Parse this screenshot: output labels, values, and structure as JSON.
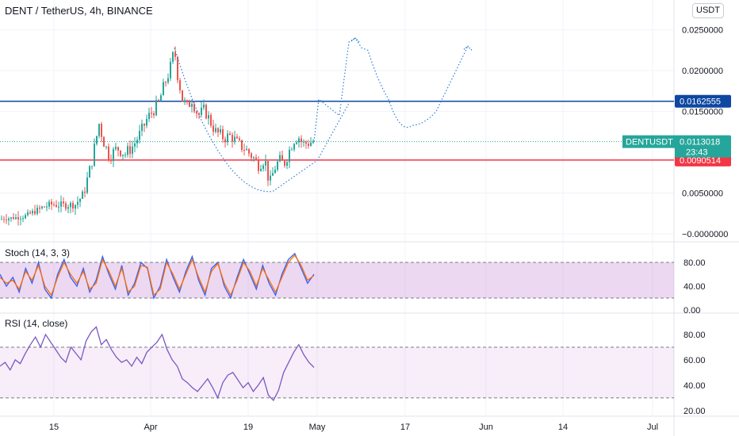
{
  "chart_data": [
    {
      "type": "candlestick",
      "title": "DENT / TetherUS, 4h, BINANCE",
      "currency": "USDT",
      "price_ticks": [
        "0.0250000",
        "0.0200000",
        "0.0150000",
        "0.0050000",
        "−0.0000000"
      ],
      "price_range": [
        -0.0002,
        0.0275
      ],
      "x_tick_labels": [
        "15",
        "Apr",
        "19",
        "May",
        "17",
        "Jun",
        "14",
        "Jul"
      ],
      "symbol_tag": {
        "label": "DENTUSDT",
        "value": "0.0113018",
        "countdown": "23:43",
        "color": "#26a69a"
      },
      "horizontal_levels": [
        {
          "value": 0.0162555,
          "label": "0.0162555",
          "color": "#0d47a1"
        },
        {
          "value": 0.0090514,
          "label": "0.0090514",
          "color": "#f23645"
        }
      ],
      "close_path": [
        [
          0,
          0.0018
        ],
        [
          30,
          0.0021
        ],
        [
          45,
          0.0028
        ],
        [
          55,
          0.0033
        ],
        [
          65,
          0.0036
        ],
        [
          80,
          0.0035
        ],
        [
          95,
          0.0036
        ],
        [
          105,
          0.0048
        ],
        [
          115,
          0.0085
        ],
        [
          125,
          0.0135
        ],
        [
          130,
          0.0115
        ],
        [
          138,
          0.0095
        ],
        [
          148,
          0.0105
        ],
        [
          158,
          0.0098
        ],
        [
          168,
          0.0108
        ],
        [
          178,
          0.0125
        ],
        [
          185,
          0.014
        ],
        [
          192,
          0.015
        ],
        [
          200,
          0.016
        ],
        [
          208,
          0.0185
        ],
        [
          214,
          0.02
        ],
        [
          220,
          0.0226
        ],
        [
          224,
          0.0195
        ],
        [
          230,
          0.0165
        ],
        [
          236,
          0.0155
        ],
        [
          242,
          0.0165
        ],
        [
          250,
          0.0145
        ],
        [
          258,
          0.0152
        ],
        [
          265,
          0.0138
        ],
        [
          272,
          0.0125
        ],
        [
          282,
          0.0118
        ],
        [
          292,
          0.012
        ],
        [
          300,
          0.011
        ],
        [
          308,
          0.0105
        ],
        [
          318,
          0.0095
        ],
        [
          326,
          0.0085
        ],
        [
          334,
          0.0092
        ],
        [
          340,
          0.006
        ],
        [
          346,
          0.008
        ],
        [
          352,
          0.009
        ],
        [
          358,
          0.0085
        ],
        [
          364,
          0.01
        ],
        [
          370,
          0.0115
        ],
        [
          376,
          0.012
        ],
        [
          382,
          0.011
        ],
        [
          390,
          0.0112
        ],
        [
          396,
          0.0113
        ]
      ],
      "projection_path": [
        [
          396,
          0.0113
        ],
        [
          402,
          0.0165
        ],
        [
          428,
          0.0145
        ],
        [
          440,
          0.0235
        ],
        [
          448,
          0.024
        ],
        [
          456,
          0.0228
        ],
        [
          464,
          0.0225
        ],
        [
          490,
          0.0165
        ],
        [
          520,
          0.0133
        ],
        [
          550,
          0.015
        ],
        [
          590,
          0.023
        ]
      ],
      "cup_curve": [
        [
          220,
          0.0228
        ],
        [
          270,
          0.011
        ],
        [
          344,
          0.0052
        ],
        [
          400,
          0.009
        ],
        [
          440,
          0.016
        ]
      ],
      "candle_up_color": "#26a69a",
      "candle_down_color": "#ef5350",
      "projection_color": "#2a7fd4"
    },
    {
      "type": "line",
      "label": "Stoch (14, 3, 3)",
      "y_ticks": [
        "80.00",
        "40.00",
        "0.00"
      ],
      "band": [
        20,
        80
      ],
      "y_range": [
        0,
        100
      ],
      "series": [
        {
          "color": "#2962ff",
          "values": [
            60,
            40,
            55,
            30,
            70,
            45,
            80,
            35,
            20,
            60,
            85,
            55,
            40,
            70,
            30,
            50,
            90,
            60,
            35,
            75,
            25,
            45,
            80,
            70,
            20,
            40,
            85,
            55,
            30,
            65,
            90,
            50,
            25,
            70,
            80,
            40,
            20,
            55,
            85,
            60,
            35,
            75,
            45,
            25,
            60,
            85,
            95,
            70,
            45,
            60
          ]
        },
        {
          "color": "#ff6d00",
          "values": [
            55,
            45,
            50,
            35,
            65,
            50,
            75,
            40,
            25,
            55,
            80,
            60,
            45,
            65,
            35,
            45,
            85,
            65,
            40,
            70,
            30,
            40,
            75,
            72,
            25,
            35,
            80,
            60,
            35,
            60,
            85,
            55,
            30,
            65,
            78,
            45,
            25,
            50,
            80,
            65,
            40,
            70,
            50,
            30,
            55,
            80,
            92,
            75,
            50,
            58
          ]
        }
      ]
    },
    {
      "type": "line",
      "label": "RSI (14, close)",
      "y_ticks": [
        "80.00",
        "60.00",
        "40.00",
        "20.00"
      ],
      "band": [
        30,
        70
      ],
      "y_range": [
        18,
        90
      ],
      "series": [
        {
          "color": "#7e57c2",
          "values": [
            55,
            58,
            52,
            60,
            57,
            65,
            72,
            78,
            70,
            80,
            74,
            68,
            62,
            58,
            70,
            65,
            60,
            75,
            82,
            86,
            72,
            76,
            68,
            62,
            58,
            60,
            55,
            62,
            57,
            66,
            70,
            74,
            80,
            68,
            60,
            55,
            45,
            42,
            38,
            35,
            40,
            45,
            38,
            30,
            42,
            48,
            50,
            44,
            38,
            42,
            35,
            40,
            46,
            32,
            28,
            36,
            50,
            58,
            66,
            72,
            64,
            58,
            54
          ]
        }
      ]
    }
  ]
}
